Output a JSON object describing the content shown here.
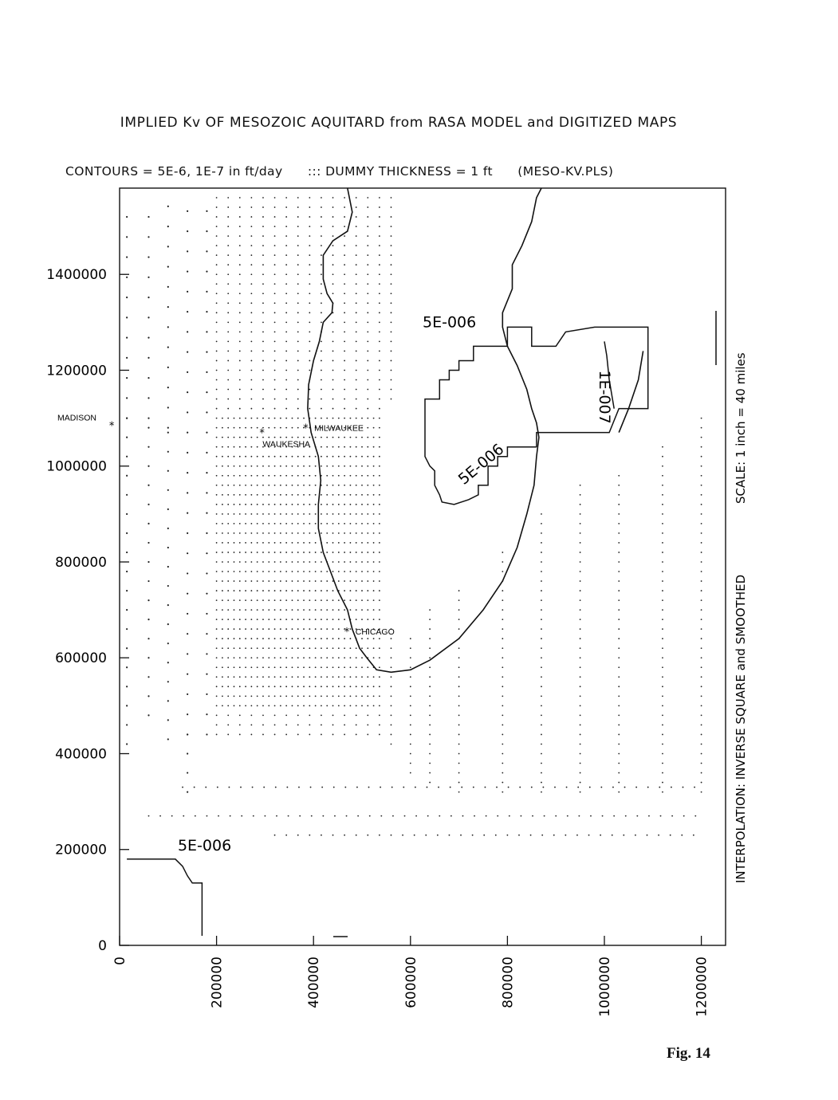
{
  "title": "IMPLIED Kv OF MESOZOIC AQUITARD from RASA MODEL and DIGITIZED MAPS",
  "subtitle": {
    "contours": "CONTOURS = 5E-6, 1E-7 in ft/day",
    "dummy": "::: DUMMY THICKNESS = 1 ft",
    "file": "(MESO-KV.PLS)"
  },
  "side_notes": {
    "interpolation": "INTERPOLATION: INVERSE SQUARE and SMOOTHED",
    "scale": "SCALE: 1 inch = 40 miles"
  },
  "figure_label": "Fig. 14",
  "axes": {
    "x_ticks": [
      "0",
      "200000",
      "400000",
      "600000",
      "800000",
      "1000000",
      "1200000"
    ],
    "y_ticks": [
      "0",
      "200000",
      "400000",
      "600000",
      "800000",
      "1000000",
      "1200000",
      "1400000"
    ],
    "x_range": [
      0,
      1250000
    ],
    "y_range": [
      0,
      1580000
    ]
  },
  "cities": [
    {
      "name": "MADISON",
      "x": -15000,
      "y": 1085000
    },
    {
      "name": "MILWAUKEE",
      "x": 385000,
      "y": 1080000
    },
    {
      "name": "WAUKESHA",
      "x": 295000,
      "y": 1070000
    },
    {
      "name": "CHICAGO",
      "x": 470000,
      "y": 655000
    }
  ],
  "contour_labels": [
    {
      "text": "5E-006",
      "x": 625000,
      "y": 1290000
    },
    {
      "text": "1E-007",
      "x": 990000,
      "y": 1200000
    },
    {
      "text": "5E-006",
      "x": 710000,
      "y": 960000
    },
    {
      "text": "5E-006",
      "x": 120000,
      "y": 198000
    }
  ],
  "chart_data": {
    "type": "contour-map",
    "xlim": [
      0,
      1250000
    ],
    "ylim": [
      0,
      1580000
    ],
    "contour_levels_ft_per_day": [
      5e-06,
      1e-07
    ],
    "contours": [
      {
        "level": "5E-006",
        "points": [
          [
            860000,
            1040000
          ],
          [
            800000,
            1040000
          ],
          [
            800000,
            1020000
          ],
          [
            780000,
            1020000
          ],
          [
            780000,
            1000000
          ],
          [
            760000,
            1000000
          ],
          [
            760000,
            960000
          ],
          [
            740000,
            960000
          ],
          [
            740000,
            940000
          ],
          [
            720000,
            930000
          ],
          [
            690000,
            920000
          ],
          [
            665000,
            925000
          ],
          [
            660000,
            940000
          ],
          [
            650000,
            960000
          ],
          [
            650000,
            990000
          ],
          [
            640000,
            1000000
          ],
          [
            630000,
            1020000
          ],
          [
            630000,
            1140000
          ],
          [
            660000,
            1140000
          ],
          [
            660000,
            1180000
          ],
          [
            680000,
            1180000
          ],
          [
            680000,
            1200000
          ],
          [
            700000,
            1200000
          ],
          [
            700000,
            1220000
          ],
          [
            730000,
            1220000
          ],
          [
            730000,
            1250000
          ],
          [
            800000,
            1250000
          ],
          [
            800000,
            1290000
          ],
          [
            850000,
            1290000
          ],
          [
            850000,
            1250000
          ],
          [
            900000,
            1250000
          ],
          [
            920000,
            1280000
          ],
          [
            980000,
            1290000
          ],
          [
            1090000,
            1290000
          ],
          [
            1090000,
            1120000
          ],
          [
            1030000,
            1120000
          ],
          [
            1010000,
            1070000
          ],
          [
            860000,
            1070000
          ],
          [
            860000,
            1040000
          ]
        ]
      },
      {
        "level": "1E-007",
        "points": [
          [
            1000000,
            1260000
          ],
          [
            1005000,
            1230000
          ],
          [
            1010000,
            1180000
          ],
          [
            1020000,
            1120000
          ]
        ]
      },
      {
        "level": "5E-006",
        "points": [
          [
            15000,
            180000
          ],
          [
            115000,
            180000
          ],
          [
            130000,
            165000
          ],
          [
            140000,
            145000
          ],
          [
            150000,
            130000
          ],
          [
            170000,
            130000
          ],
          [
            170000,
            20000
          ]
        ]
      }
    ],
    "shoreline_west": [
      [
        470000,
        1580000
      ],
      [
        480000,
        1530000
      ],
      [
        470000,
        1490000
      ],
      [
        440000,
        1470000
      ],
      [
        420000,
        1440000
      ],
      [
        420000,
        1390000
      ],
      [
        428000,
        1360000
      ],
      [
        440000,
        1340000
      ],
      [
        438000,
        1320000
      ],
      [
        420000,
        1300000
      ],
      [
        412000,
        1260000
      ],
      [
        400000,
        1220000
      ],
      [
        390000,
        1170000
      ],
      [
        388000,
        1120000
      ],
      [
        395000,
        1070000
      ],
      [
        410000,
        1020000
      ],
      [
        415000,
        970000
      ],
      [
        410000,
        920000
      ],
      [
        410000,
        870000
      ],
      [
        420000,
        820000
      ],
      [
        435000,
        780000
      ],
      [
        450000,
        740000
      ],
      [
        470000,
        700000
      ],
      [
        480000,
        660000
      ],
      [
        495000,
        620000
      ],
      [
        510000,
        600000
      ],
      [
        530000,
        575000
      ],
      [
        560000,
        570000
      ],
      [
        600000,
        575000
      ],
      [
        640000,
        595000
      ],
      [
        700000,
        640000
      ],
      [
        750000,
        700000
      ],
      [
        790000,
        760000
      ],
      [
        820000,
        830000
      ],
      [
        840000,
        900000
      ],
      [
        855000,
        960000
      ],
      [
        860000,
        1020000
      ],
      [
        865000,
        1060000
      ],
      [
        860000,
        1090000
      ],
      [
        850000,
        1120000
      ],
      [
        840000,
        1160000
      ],
      [
        820000,
        1210000
      ],
      [
        800000,
        1250000
      ],
      [
        790000,
        1290000
      ],
      [
        790000,
        1320000
      ],
      [
        810000,
        1370000
      ],
      [
        810000,
        1420000
      ],
      [
        830000,
        1460000
      ],
      [
        850000,
        1510000
      ],
      [
        860000,
        1560000
      ],
      [
        870000,
        1580000
      ]
    ],
    "shoreline_east": [
      [
        1030000,
        1070000
      ],
      [
        1050000,
        1120000
      ],
      [
        1070000,
        1180000
      ],
      [
        1080000,
        1240000
      ]
    ],
    "scale_bar_miles": 40
  }
}
